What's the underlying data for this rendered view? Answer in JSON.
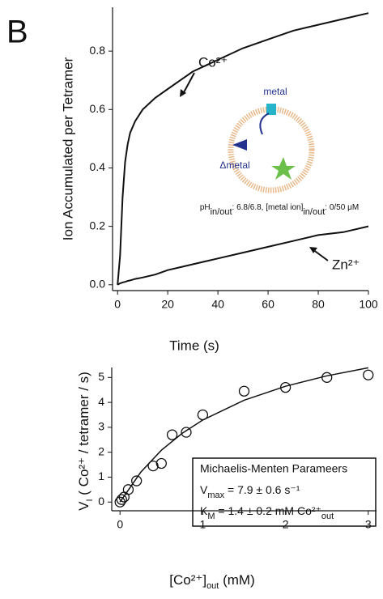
{
  "chart_data": [
    {
      "type": "line",
      "panel_label": "B",
      "y_label": "Ion Accumulated per Tetramer",
      "x_label": "Time (s)",
      "x": [
        0,
        1,
        2,
        3,
        4,
        5,
        7,
        10,
        15,
        20,
        25,
        30,
        40,
        50,
        60,
        70,
        80,
        90,
        100
      ],
      "series": [
        {
          "name": "Co²⁺",
          "color": "#111111",
          "values": [
            0,
            0.1,
            0.3,
            0.42,
            0.48,
            0.52,
            0.56,
            0.6,
            0.64,
            0.67,
            0.7,
            0.73,
            0.77,
            0.81,
            0.84,
            0.87,
            0.89,
            0.91,
            0.93
          ]
        },
        {
          "name": "Zn²⁺",
          "color": "#111111",
          "values": [
            0,
            0.005,
            0.008,
            0.01,
            0.013,
            0.015,
            0.02,
            0.025,
            0.035,
            0.05,
            0.06,
            0.07,
            0.09,
            0.11,
            0.13,
            0.15,
            0.17,
            0.18,
            0.2
          ]
        }
      ],
      "xlim": [
        -2,
        100
      ],
      "xticks": [
        0,
        20,
        40,
        60,
        80,
        100
      ],
      "ylim": [
        -0.02,
        0.95
      ],
      "yticks": [
        {
          "value": 0,
          "label": "0.0"
        },
        0.2,
        0.4,
        0.6,
        0.8
      ],
      "inset": {
        "channel_label": "metal",
        "efflux_label": "Δmetal",
        "condition": [
          "pH",
          "in/out",
          ": 6.8/6.8, [metal ion]",
          "in/out",
          ": 0/50 μM"
        ]
      }
    },
    {
      "type": "scatter",
      "y_label": [
        "V",
        "I",
        " ( Co²⁺ / tetramer / s)"
      ],
      "x_label": [
        "[Co²⁺]",
        "out",
        " (mM)"
      ],
      "series": [
        {
          "mode": "markers",
          "color": "#111111",
          "x": [
            0,
            0.02,
            0.05,
            0.1,
            0.2,
            0.4,
            0.5,
            0.63,
            0.8,
            1.0,
            1.5,
            2.0,
            2.5,
            3.0
          ],
          "values": [
            0,
            0.1,
            0.2,
            0.5,
            0.85,
            1.45,
            1.55,
            2.7,
            2.8,
            3.5,
            4.45,
            4.6,
            5.0,
            5.1
          ]
        },
        {
          "mode": "lines",
          "color": "#111111",
          "x": [
            0,
            0.25,
            0.5,
            0.75,
            1,
            1.5,
            2,
            2.5,
            3
          ],
          "values": [
            0,
            1.197,
            2.079,
            2.756,
            3.292,
            4.086,
            4.647,
            5.064,
            5.386
          ]
        }
      ],
      "xlim": [
        -0.1,
        3.1
      ],
      "xticks": [
        0,
        1,
        2,
        3
      ],
      "ylim": [
        -0.35,
        5.4
      ],
      "yticks": [
        0,
        1,
        2,
        3,
        4,
        5
      ],
      "legend_box": {
        "title": "Michaelis-Menten Parameers",
        "lines": [
          [
            "V",
            "max",
            " = 7.9 ± 0.6 s⁻¹"
          ],
          [
            "K",
            "M",
            " = 1.4 ± 0.2 mM Co²⁺",
            "out"
          ]
        ]
      }
    }
  ]
}
